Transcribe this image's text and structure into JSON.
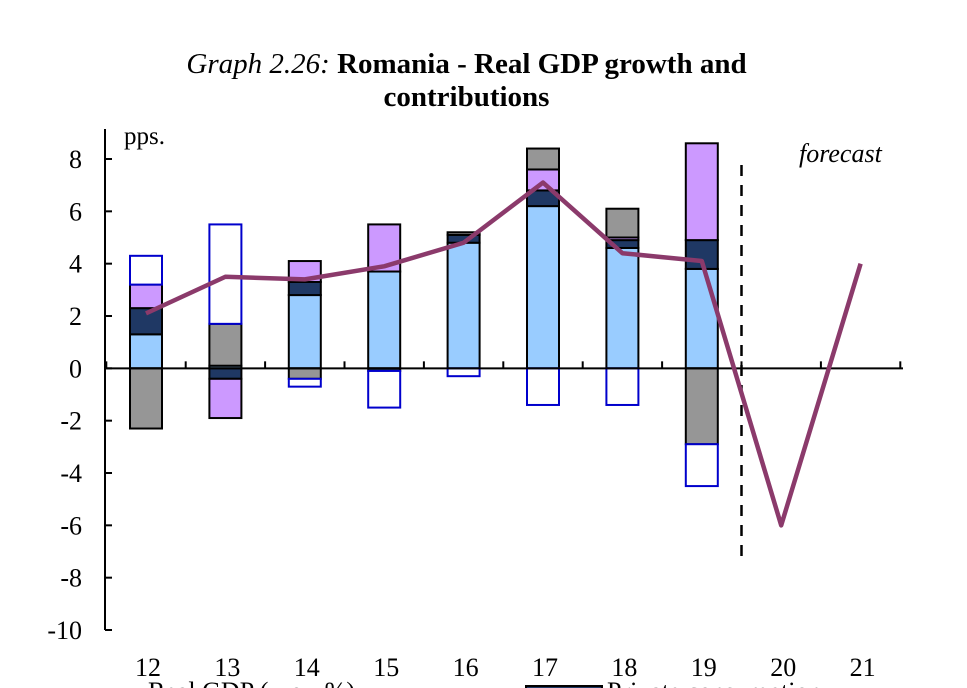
{
  "title": {
    "prefix": "Graph 2.26:",
    "line1": "Romania - Real GDP growth and",
    "line2": "contributions"
  },
  "chart_data": {
    "type": "bar",
    "stacked": true,
    "unit_label": "pps.",
    "annotation": "forecast",
    "forecast_divider_after": "19",
    "categories": [
      "12",
      "13",
      "14",
      "15",
      "16",
      "17",
      "18",
      "19",
      "20",
      "21"
    ],
    "ylim": [
      -10,
      8
    ],
    "yticks": [
      8,
      6,
      4,
      2,
      0,
      -2,
      -4,
      -6,
      -8,
      -10
    ],
    "grid": false,
    "series": [
      {
        "color": "#99ccff",
        "stroke": "#000000",
        "values": [
          1.3,
          0.1,
          2.8,
          3.7,
          4.8,
          6.2,
          4.6,
          3.8,
          null,
          null
        ]
      },
      {
        "color": "#1f3864",
        "stroke": "#000000",
        "values": [
          1.0,
          -0.4,
          0.5,
          -0.1,
          0.3,
          0.6,
          0.3,
          1.1,
          null,
          null
        ]
      },
      {
        "color": "#cc99ff",
        "stroke": "#000000",
        "values": [
          0.9,
          -1.5,
          0.8,
          1.8,
          0.0,
          0.8,
          0.1,
          3.7,
          null,
          null
        ]
      },
      {
        "color": "#969696",
        "stroke": "#000000",
        "values": [
          -2.3,
          1.6,
          -0.4,
          0.0,
          0.1,
          0.8,
          1.1,
          -2.9,
          null,
          null
        ]
      },
      {
        "color": "#ffffff",
        "stroke": "#0000cc",
        "values": [
          1.1,
          3.8,
          -0.3,
          -1.4,
          -0.3,
          -1.4,
          -1.4,
          -1.6,
          null,
          null
        ]
      }
    ],
    "line_series": {
      "color": "#8b3a6b",
      "values": [
        2.1,
        3.5,
        3.4,
        3.9,
        4.8,
        7.1,
        4.4,
        4.1,
        -6.0,
        4.0
      ]
    },
    "legend_partial": [
      "Real GDP (y-o-y%)",
      "Private consumption"
    ]
  }
}
